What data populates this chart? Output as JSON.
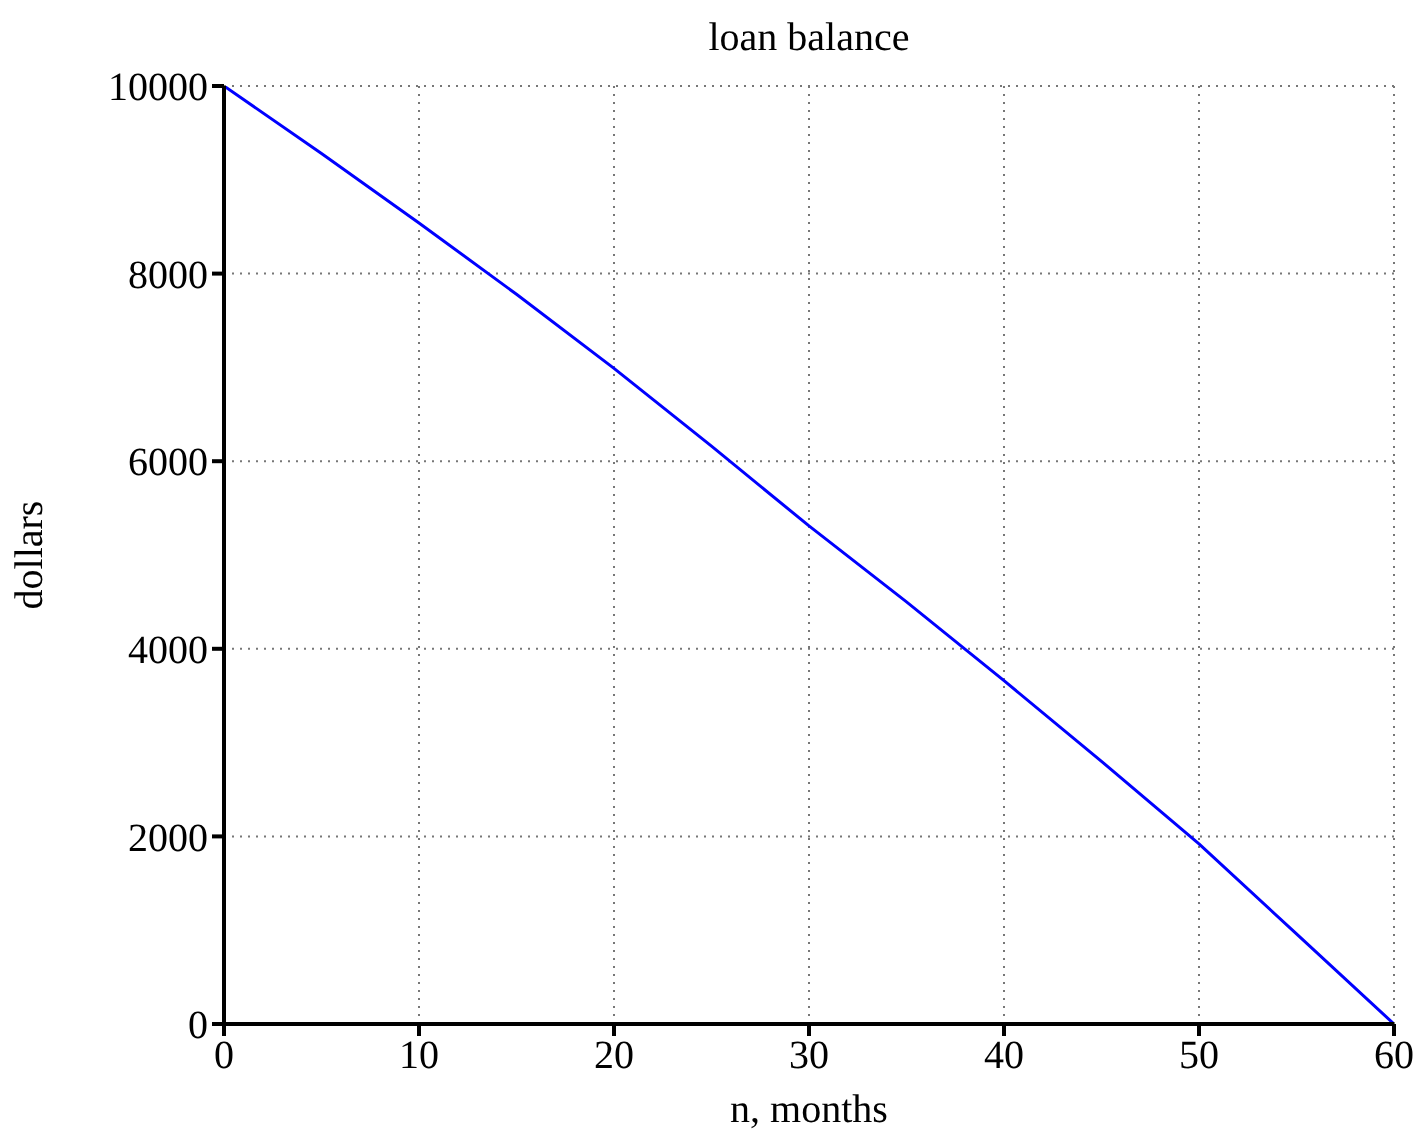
{
  "chart_data": {
    "type": "line",
    "title": "loan balance",
    "xlabel": "n,  months",
    "ylabel": "dollars",
    "x": [
      0,
      5,
      10,
      15,
      20,
      25,
      30,
      35,
      40,
      45,
      50,
      55,
      60
    ],
    "series": [
      {
        "color": "#0000ff",
        "values": [
          10000,
          9280,
          8540,
          7780,
          6990,
          6160,
          5310,
          4500,
          3660,
          2800,
          1920,
          960,
          0
        ]
      }
    ],
    "xlim": [
      0,
      60
    ],
    "xticks": [
      0,
      10,
      20,
      30,
      40,
      50,
      60
    ],
    "ylim": [
      0,
      10000
    ],
    "yticks": [
      0,
      2000,
      4000,
      6000,
      8000,
      10000
    ],
    "grid": true,
    "legend": false,
    "marker": "none",
    "line_style": "solid"
  }
}
